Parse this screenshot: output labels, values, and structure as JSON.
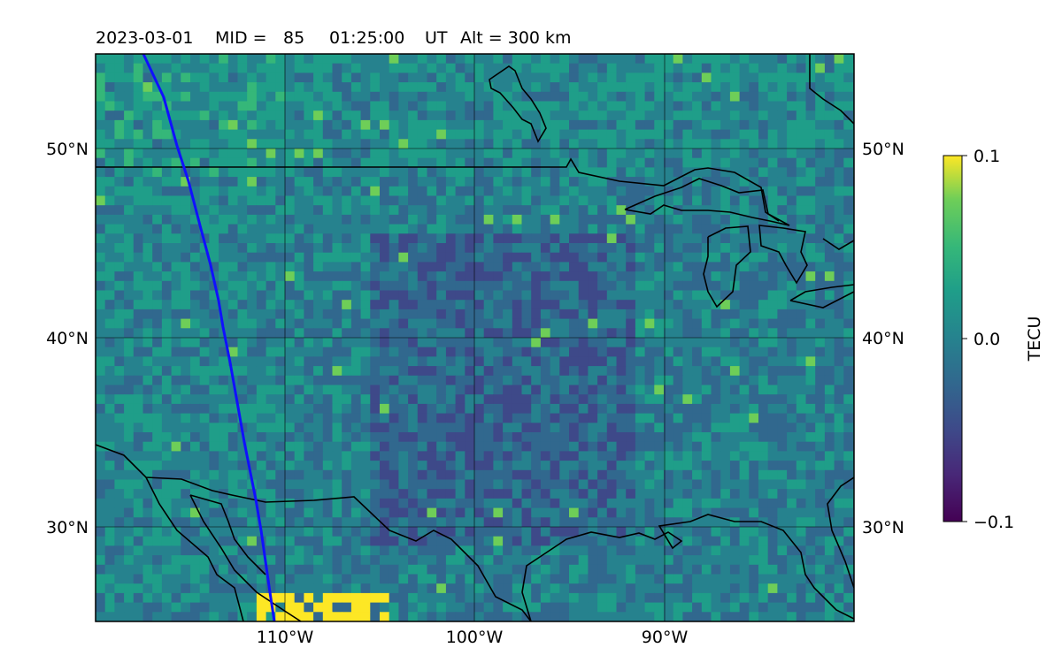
{
  "title": {
    "date": "2023-03-01",
    "mid_label": "MID =",
    "mid_value": "85",
    "time": "01:25:00",
    "time_unit": "UT",
    "alt_label": "Alt = 300 km"
  },
  "map": {
    "lat_labels": [
      "50°N",
      "40°N",
      "30°N"
    ],
    "lon_labels": [
      "110°W",
      "100°W",
      "90°W"
    ],
    "lat_range": [
      25,
      55
    ],
    "lon_range": [
      -120,
      -80
    ],
    "track_color": "#1010ff"
  },
  "colorbar": {
    "label": "TECU",
    "ticks": [
      "0.1",
      "0.0",
      "−0.1"
    ],
    "range": [
      -0.1,
      0.1
    ],
    "colormap": "viridis"
  }
}
